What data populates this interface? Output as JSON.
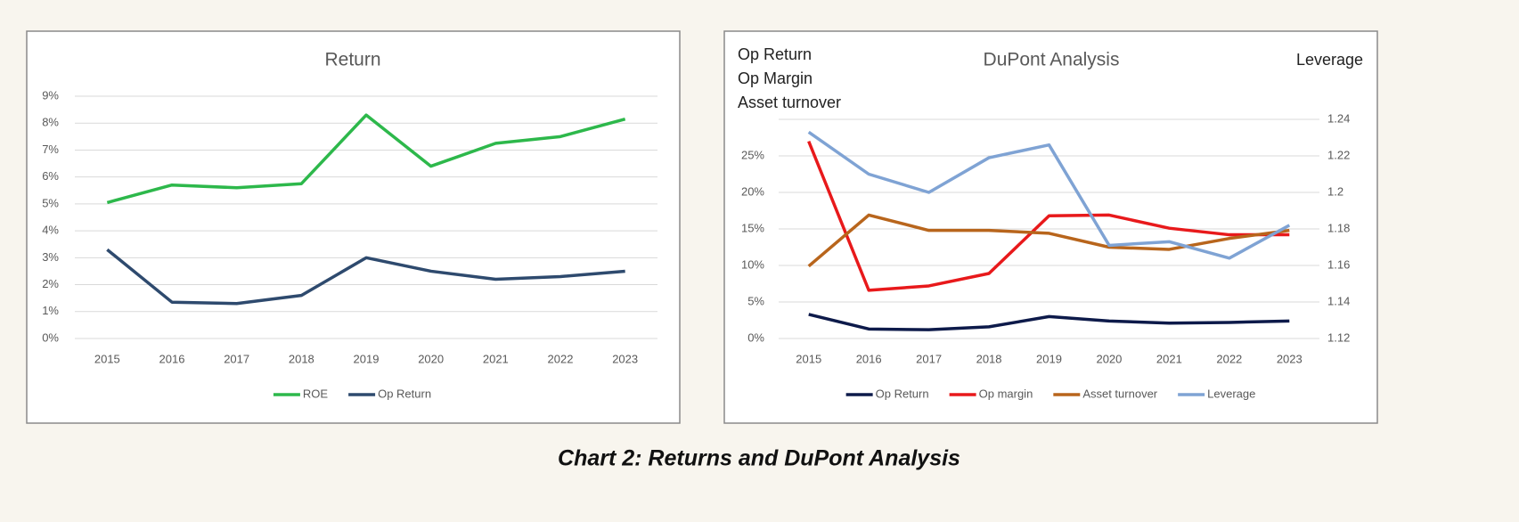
{
  "chart_data": [
    {
      "type": "line",
      "title": "Return",
      "categories": [
        "2015",
        "2016",
        "2017",
        "2018",
        "2019",
        "2020",
        "2021",
        "2022",
        "2023"
      ],
      "series": [
        {
          "name": "ROE",
          "color": "#2db84b",
          "values": [
            5.05,
            5.7,
            5.6,
            5.75,
            8.3,
            6.4,
            7.25,
            7.5,
            8.15
          ]
        },
        {
          "name": "Op Return",
          "color": "#2e4a6e",
          "values": [
            3.3,
            1.35,
            1.3,
            1.6,
            3.0,
            2.5,
            2.2,
            2.3,
            2.5
          ]
        }
      ],
      "ylim": [
        0,
        9
      ],
      "yticks": [
        {
          "value": 0,
          "label": "0%"
        },
        {
          "value": 1,
          "label": "1%"
        },
        {
          "value": 2,
          "label": "2%"
        },
        {
          "value": 3,
          "label": "3%"
        },
        {
          "value": 4,
          "label": "4%"
        },
        {
          "value": 5,
          "label": "5%"
        },
        {
          "value": 6,
          "label": "6%"
        },
        {
          "value": 7,
          "label": "7%"
        },
        {
          "value": 8,
          "label": "8%"
        },
        {
          "value": 9,
          "label": "9%"
        }
      ],
      "grid": true,
      "legend": "bottom"
    },
    {
      "type": "line",
      "title": "DuPont Analysis",
      "ylabel": [
        "Op Return",
        "Op Margin",
        "Asset turnover"
      ],
      "y2label": "Leverage",
      "categories": [
        "2015",
        "2016",
        "2017",
        "2018",
        "2019",
        "2020",
        "2021",
        "2022",
        "2023"
      ],
      "series": [
        {
          "name": "Op Return",
          "color": "#0d1a4a",
          "values": [
            3.3,
            1.3,
            1.2,
            1.6,
            3.0,
            2.4,
            2.1,
            2.2,
            2.4
          ]
        },
        {
          "name": "Op margin",
          "color": "#e8191b",
          "values": [
            27,
            6.6,
            7.2,
            8.9,
            16.8,
            16.9,
            15.1,
            14.2,
            14.2
          ]
        },
        {
          "name": "Asset turnover",
          "color": "#b8651c",
          "values": [
            9.9,
            16.9,
            14.8,
            14.8,
            14.4,
            12.5,
            12.2,
            13.7,
            14.8
          ]
        },
        {
          "name": "Leverage",
          "color": "#7fa3d4",
          "axis": "y2",
          "values": [
            1.233,
            1.21,
            1.2,
            1.219,
            1.226,
            1.171,
            1.173,
            1.164,
            1.182
          ]
        }
      ],
      "ylim": [
        0,
        30
      ],
      "yticks": [
        {
          "value": 0,
          "label": "0%"
        },
        {
          "value": 5,
          "label": "5%"
        },
        {
          "value": 10,
          "label": "10%"
        },
        {
          "value": 15,
          "label": "15%"
        },
        {
          "value": 20,
          "label": "20%"
        },
        {
          "value": 25,
          "label": "25%"
        }
      ],
      "y2lim": [
        1.12,
        1.24
      ],
      "y2ticks": [
        1.12,
        1.14,
        1.16,
        1.18,
        1.2,
        1.22,
        1.24
      ],
      "grid": true,
      "legend": "bottom"
    }
  ],
  "caption": "Chart 2: Returns and DuPont Analysis"
}
